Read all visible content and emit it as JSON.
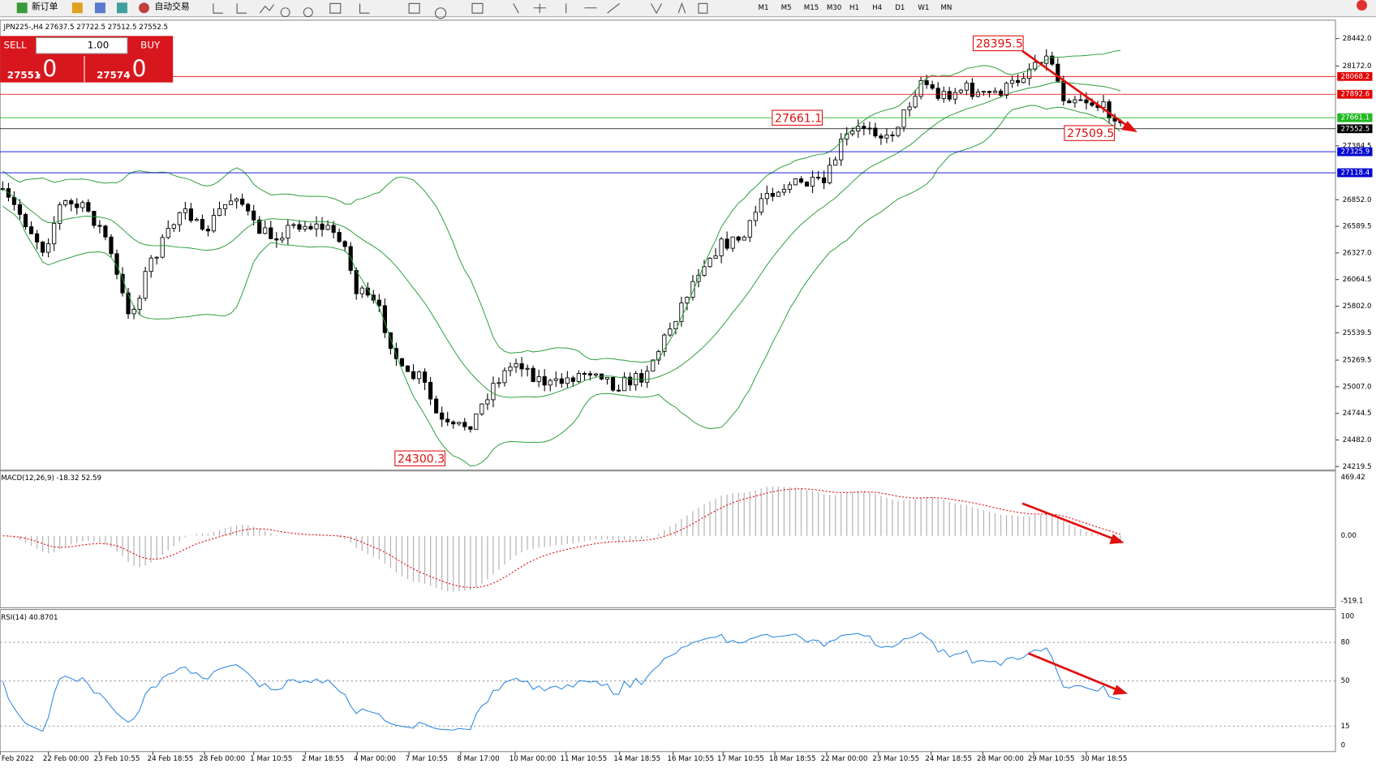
{
  "toolbar": {
    "buttons": [
      "新订单",
      "自动交易"
    ],
    "timeframes": [
      "M1",
      "M5",
      "M15",
      "M30",
      "H1",
      "H4",
      "D1",
      "W1",
      "MN"
    ]
  },
  "chart": {
    "header": "JPN225-,H4  27637.5 27722.5 27512.5 27552.5",
    "trade_panel": {
      "sell": "SELL",
      "lot": "1.00",
      "buy": "BUY",
      "sell_price": "27551",
      "sell_pips": ".0",
      "buy_price": "27574",
      "buy_pips": ".0"
    },
    "price_axis": [
      "28442.0",
      "28172.0",
      "27384.5",
      "26852.0",
      "26589.5",
      "26327.0",
      "26064.5",
      "25802.0",
      "25539.5",
      "25269.5",
      "25007.0",
      "24744.5",
      "24482.0",
      "24219.5"
    ],
    "levels": [
      {
        "label": "28068.2",
        "color": "#e00000"
      },
      {
        "label": "27892.6",
        "color": "#e00000"
      },
      {
        "label": "27661.1",
        "color": "#22b822"
      },
      {
        "label": "27552.5",
        "color": "#000000"
      },
      {
        "label": "27325.9",
        "color": "#0000d0"
      },
      {
        "label": "27118.4",
        "color": "#0000d0"
      }
    ],
    "annotations": [
      "28395.5",
      "27661.1",
      "27509.5",
      "24300.3"
    ]
  },
  "macd": {
    "label": "MACD(12,26,9) -18.32 52.59",
    "axis": [
      "469.42",
      "0.00",
      "-519.1"
    ]
  },
  "rsi": {
    "label": "RSI(14) 40.8701",
    "axis": [
      "100",
      "80",
      "50",
      "15",
      "0"
    ]
  },
  "time_axis": [
    "Feb 2022",
    "22 Feb 00:00",
    "23 Feb 10:55",
    "24 Feb 18:55",
    "28 Feb 00:00",
    "1 Mar 10:55",
    "2 Mar 18:55",
    "4 Mar 00:00",
    "7 Mar 10:55",
    "8 Mar 17:00",
    "10 Mar 00:00",
    "11 Mar 10:55",
    "14 Mar 18:55",
    "16 Mar 10:55",
    "17 Mar 10:55",
    "18 Mar 18:55",
    "22 Mar 00:00",
    "23 Mar 10:55",
    "24 Mar 18:55",
    "28 Mar 00:00",
    "29 Mar 10:55",
    "30 Mar 18:55"
  ]
}
